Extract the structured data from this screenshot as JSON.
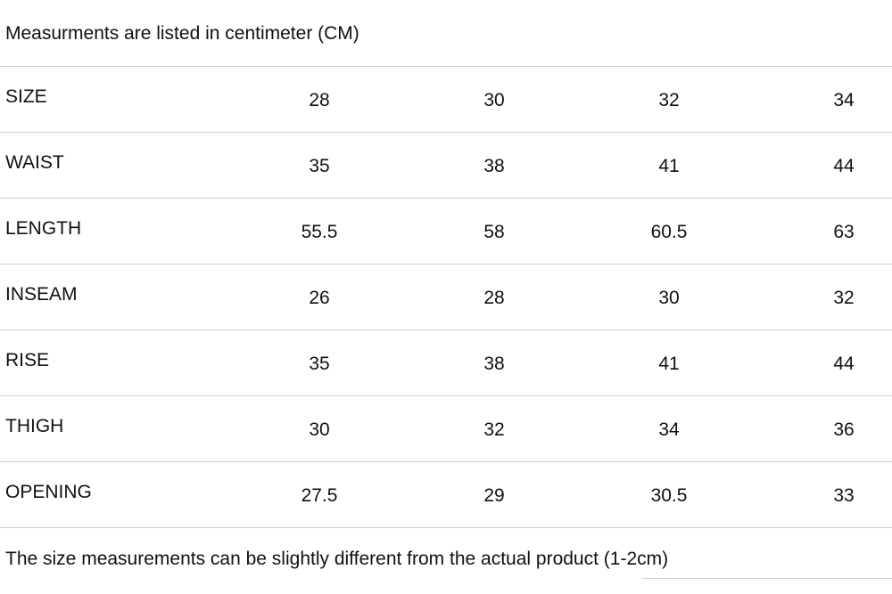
{
  "header": {
    "note": "Measurments are listed in centimeter (CM)"
  },
  "table": {
    "rows": [
      {
        "label": "SIZE",
        "values": [
          "28",
          "30",
          "32",
          "34"
        ]
      },
      {
        "label": "WAIST",
        "values": [
          "35",
          "38",
          "41",
          "44"
        ]
      },
      {
        "label": "LENGTH",
        "values": [
          "55.5",
          "58",
          "60.5",
          "63"
        ]
      },
      {
        "label": "INSEAM",
        "values": [
          "26",
          "28",
          "30",
          "32"
        ]
      },
      {
        "label": "RISE",
        "values": [
          "35",
          "38",
          "41",
          "44"
        ]
      },
      {
        "label": "THIGH",
        "values": [
          "30",
          "32",
          "34",
          "36"
        ]
      },
      {
        "label": "OPENING",
        "values": [
          "27.5",
          "29",
          "30.5",
          "33"
        ]
      }
    ]
  },
  "footer": {
    "note": "The size measurements can be slightly different from the actual product (1-2cm)"
  }
}
